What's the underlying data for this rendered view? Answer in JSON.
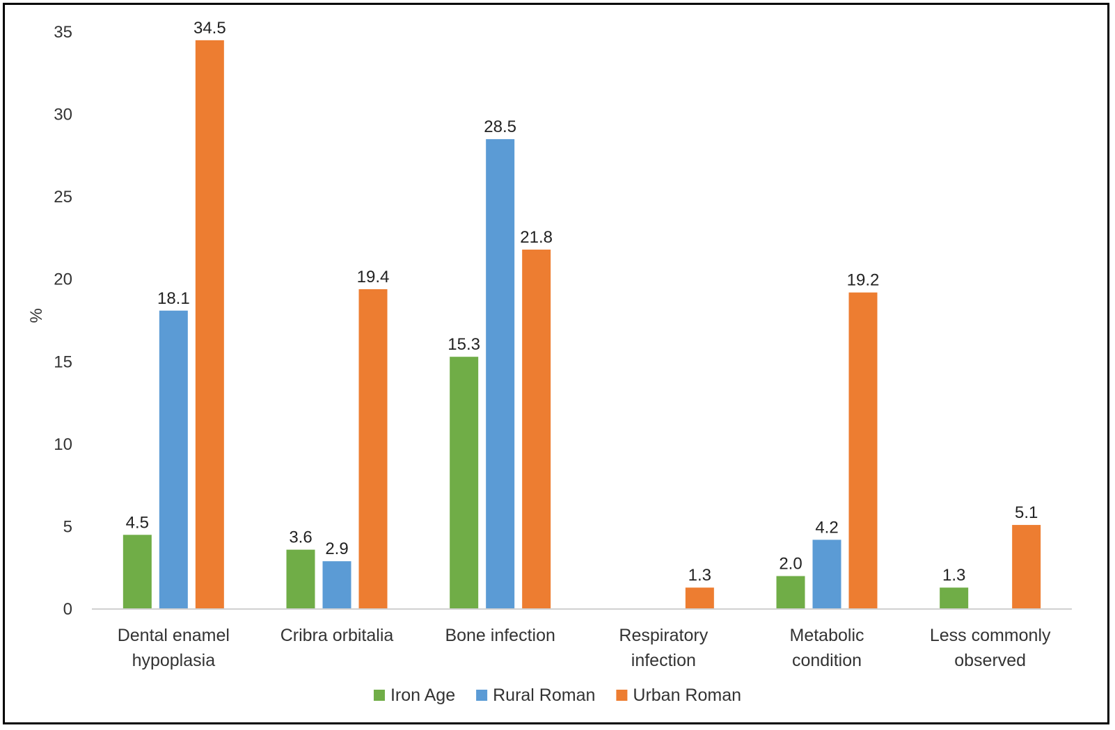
{
  "chart_data": {
    "type": "bar",
    "title": "",
    "xlabel": "",
    "ylabel": "%",
    "ylim": [
      0,
      35
    ],
    "yticks": [
      0,
      5,
      10,
      15,
      20,
      25,
      30,
      35
    ],
    "grid": false,
    "legend_position": "bottom",
    "categories": [
      [
        "Dental enamel",
        "hypoplasia"
      ],
      [
        "Cribra orbitalia"
      ],
      [
        "Bone infection"
      ],
      [
        "Respiratory",
        "infection"
      ],
      [
        "Metabolic",
        "condition"
      ],
      [
        "Less commonly",
        "observed"
      ]
    ],
    "series": [
      {
        "name": "Iron Age",
        "color": "#70ad47",
        "values": [
          4.5,
          3.6,
          15.3,
          null,
          2.0,
          1.3
        ],
        "labels": [
          "4.5",
          "3.6",
          "15.3",
          "",
          "2.0",
          "1.3"
        ]
      },
      {
        "name": "Rural Roman",
        "color": "#5b9bd5",
        "values": [
          18.1,
          2.9,
          28.5,
          null,
          4.2,
          null
        ],
        "labels": [
          "18.1",
          "2.9",
          "28.5",
          "",
          "4.2",
          ""
        ]
      },
      {
        "name": "Urban Roman",
        "color": "#ed7d31",
        "values": [
          34.5,
          19.4,
          21.8,
          1.3,
          19.2,
          5.1
        ],
        "labels": [
          "34.5",
          "19.4",
          "21.8",
          "1.3",
          "19.2",
          "5.1"
        ]
      }
    ]
  }
}
